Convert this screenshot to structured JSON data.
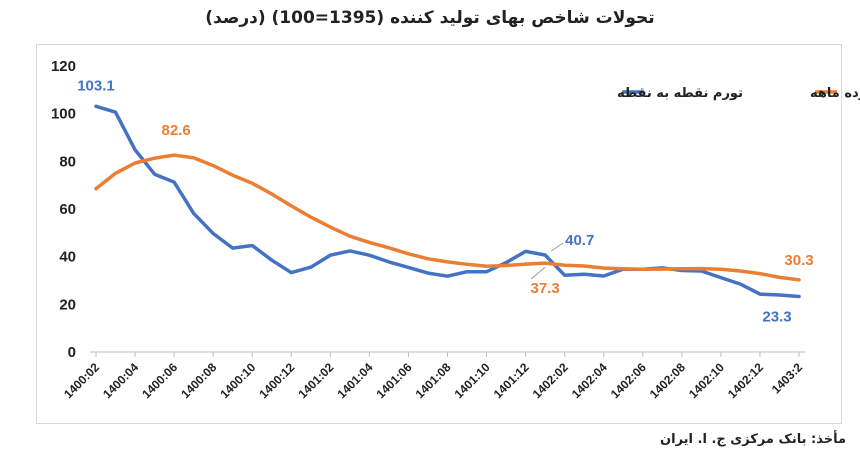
{
  "chart_data": {
    "type": "line",
    "title": "تحولات شاخص بهای تولید کننده (1395=100) (درصد)",
    "source": "مأخذ: بانک مرکزی ج. ا. ایران",
    "ylim": [
      0,
      120
    ],
    "yticks": [
      0,
      20,
      40,
      60,
      80,
      100,
      120
    ],
    "grid": false,
    "legend_position": "top-right",
    "x_tick_labels": [
      "1400:02",
      "1400:04",
      "1400:06",
      "1400:08",
      "1400:10",
      "1400:12",
      "1401:02",
      "1401:04",
      "1401:06",
      "1401:08",
      "1401:10",
      "1401:12",
      "1402:02",
      "1402:04",
      "1402:06",
      "1402:08",
      "1402:10",
      "1402:12",
      "1403:2"
    ],
    "x_count": 37,
    "series": [
      {
        "name": "تورم نقطه به نقطه",
        "color": "#4472C4",
        "values": [
          103.1,
          100.6,
          84.8,
          74.6,
          71.3,
          58.2,
          49.7,
          43.6,
          44.7,
          38.5,
          33.3,
          35.6,
          40.6,
          42.4,
          40.6,
          37.8,
          35.5,
          33.1,
          31.8,
          33.7,
          33.7,
          37.5,
          42.2,
          40.7,
          32.2,
          32.6,
          31.9,
          34.8,
          34.7,
          35.3,
          34.2,
          34.0,
          31.2,
          28.5,
          24.3,
          23.9,
          23.3
        ]
      },
      {
        "name": "تورم دوازده ماهه",
        "color": "#ED7D31",
        "values": [
          68.5,
          75.0,
          79.3,
          81.3,
          82.6,
          81.5,
          78.2,
          74.2,
          70.8,
          66.3,
          61.3,
          56.6,
          52.4,
          48.6,
          46.0,
          43.7,
          41.2,
          39.1,
          37.8,
          36.8,
          36.0,
          36.3,
          36.9,
          37.3,
          36.4,
          36.1,
          35.2,
          34.9,
          34.7,
          34.8,
          34.9,
          35.0,
          34.7,
          34.0,
          32.9,
          31.3,
          30.3
        ]
      }
    ],
    "annotations": [
      {
        "text": "103.1",
        "series": 0,
        "index": 0
      },
      {
        "text": "82.6",
        "series": 1,
        "index": 4
      },
      {
        "text": "40.7",
        "series": 0,
        "index": 23
      },
      {
        "text": "37.3",
        "series": 1,
        "index": 23
      },
      {
        "text": "30.3",
        "series": 1,
        "index": 36
      },
      {
        "text": "23.3",
        "series": 0,
        "index": 36
      }
    ]
  }
}
